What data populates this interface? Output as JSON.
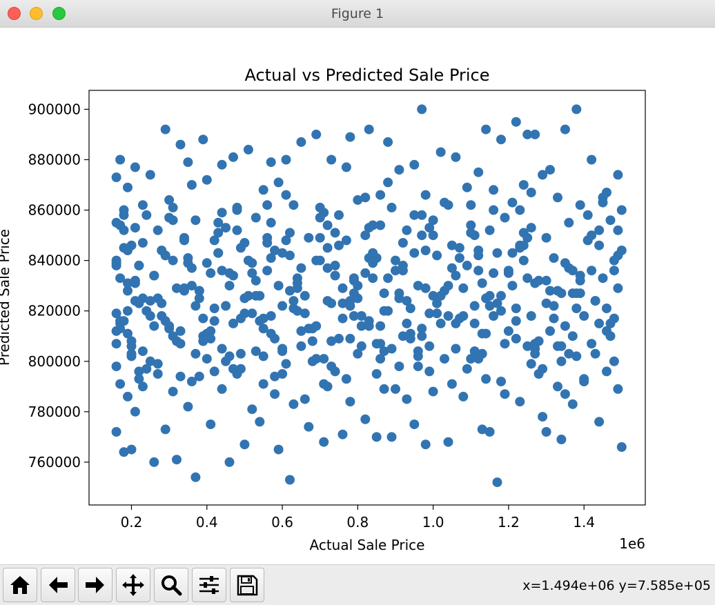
{
  "window": {
    "title": "Figure 1"
  },
  "toolbar": {
    "buttons": [
      {
        "name": "home-icon"
      },
      {
        "name": "back-arrow-icon"
      },
      {
        "name": "forward-arrow-icon"
      },
      {
        "name": "pan-move-icon"
      },
      {
        "name": "zoom-magnifier-icon"
      },
      {
        "name": "configure-subplots-icon"
      },
      {
        "name": "save-floppy-icon"
      }
    ],
    "coords": "x=1.494e+06 y=7.585e+05"
  },
  "chart_data": {
    "type": "scatter",
    "title": "Actual vs Predicted Sale Price",
    "xlabel": "Actual Sale Price",
    "ylabel": "Predicted Sale Price",
    "x_offset_label": "1e6",
    "xlim": [
      0.0875,
      1.5625
    ],
    "ylim": [
      743000,
      907500
    ],
    "xticks": [
      0.2,
      0.4,
      0.6,
      0.8,
      1.0,
      1.2,
      1.4
    ],
    "xtick_labels": [
      "0.2",
      "0.4",
      "0.6",
      "0.8",
      "1.0",
      "1.2",
      "1.4"
    ],
    "yticks": [
      760000,
      780000,
      800000,
      820000,
      840000,
      860000,
      880000,
      900000
    ],
    "ytick_labels": [
      "760000",
      "780000",
      "800000",
      "820000",
      "840000",
      "860000",
      "880000",
      "900000"
    ],
    "marker_color": "#3274b1",
    "grid": false,
    "points_x": [
      0.97,
      1.38,
      0.29,
      0.33,
      0.39,
      1.22,
      1.35,
      1.14,
      0.83,
      0.69,
      0.78,
      1.25,
      1.27,
      0.51,
      0.65,
      1.02,
      0.17,
      0.35,
      0.47,
      0.61,
      0.88,
      1.18,
      1.42,
      0.16,
      0.21,
      0.44,
      0.57,
      0.73,
      0.95,
      1.06,
      1.31,
      1.49,
      0.25,
      0.4,
      0.59,
      0.77,
      0.91,
      1.12,
      1.29,
      1.46,
      0.19,
      0.55,
      0.86,
      1.09,
      1.24,
      0.16,
      0.23,
      0.31,
      0.48,
      0.63,
      0.8,
      0.98,
      1.16,
      1.33,
      1.5,
      0.18,
      0.37,
      0.53,
      0.71,
      0.89,
      1.04,
      1.21,
      1.39,
      0.27,
      0.45,
      0.62,
      0.84,
      1.0,
      1.19,
      1.36,
      1.47,
      0.2,
      0.34,
      0.5,
      0.67,
      0.82,
      0.93,
      1.1,
      1.26,
      1.44,
      0.16,
      0.29,
      0.43,
      0.58,
      0.75,
      0.92,
      1.07,
      1.23,
      1.41,
      0.22,
      0.36,
      0.52,
      0.7,
      0.85,
      1.01,
      1.17,
      1.32,
      1.48,
      0.17,
      0.26,
      0.41,
      0.56,
      0.74,
      0.9,
      1.05,
      1.2,
      1.37,
      0.19,
      0.32,
      0.46,
      0.64,
      0.79,
      0.96,
      1.13,
      1.28,
      1.45,
      0.21,
      0.38,
      0.54,
      0.72,
      0.87,
      1.03,
      1.15,
      1.34,
      1.49,
      0.24,
      0.42,
      0.6,
      0.76,
      0.94,
      1.11,
      1.3,
      1.43,
      0.18,
      0.28,
      0.49,
      0.66,
      0.81,
      0.99,
      1.18,
      1.4,
      0.16,
      0.3,
      0.47,
      0.68,
      0.83,
      1.02,
      1.22,
      1.35,
      0.2,
      0.39,
      0.57,
      0.78,
      0.97,
      1.14,
      1.31,
      1.47,
      0.23,
      0.44,
      0.65,
      0.86,
      1.06,
      1.25,
      1.42,
      0.16,
      0.25,
      0.4,
      0.55,
      0.69,
      0.8,
      0.96,
      1.12,
      1.27,
      1.38,
      1.48,
      0.17,
      0.22,
      0.27,
      0.33,
      0.42,
      0.49,
      0.6,
      0.74,
      0.91,
      1.09,
      1.28,
      1.46,
      0.19,
      0.31,
      0.44,
      0.58,
      0.72,
      0.87,
      1.0,
      1.19,
      1.33,
      1.49,
      0.21,
      0.35,
      0.52,
      0.63,
      0.78,
      0.93,
      1.08,
      1.23,
      1.37,
      0.16,
      0.29,
      0.41,
      0.54,
      0.67,
      0.82,
      0.95,
      1.13,
      1.29,
      1.44,
      0.18,
      0.26,
      0.37,
      0.5,
      0.62,
      0.76,
      0.89,
      1.04,
      1.17,
      1.34,
      1.5,
      0.2,
      0.32,
      0.46,
      0.59,
      0.71,
      0.85,
      0.98,
      1.15,
      1.3,
      1.45,
      0.24,
      0.36,
      0.48,
      0.61,
      0.75,
      0.88,
      1.03,
      1.16,
      1.26,
      1.41,
      0.17,
      0.28,
      0.43,
      0.56,
      0.7,
      0.84,
      0.99,
      1.11,
      1.24,
      1.39,
      0.22,
      0.34,
      0.51,
      0.64,
      0.79,
      0.92,
      1.07,
      1.21,
      1.36,
      1.47,
      0.19,
      0.3,
      0.45,
      0.57,
      0.73,
      0.86,
      1.01,
      1.14,
      1.32,
      1.43,
      0.16,
      0.27,
      0.39,
      0.53,
      0.68,
      0.81,
      0.94,
      1.1,
      1.27,
      1.4,
      0.23,
      0.38,
      0.55,
      0.66,
      0.77,
      0.9,
      1.05,
      1.18,
      1.35,
      1.49,
      0.18,
      0.31,
      0.42,
      0.6,
      0.72,
      0.83,
      0.97,
      1.12,
      1.25,
      1.42,
      0.21,
      0.35,
      0.47,
      0.62,
      0.74,
      0.88,
      1.02,
      1.16,
      1.3,
      1.46,
      0.17,
      0.25,
      0.4,
      0.52,
      0.65,
      0.8,
      0.93,
      1.08,
      1.22,
      1.37,
      0.2,
      0.33,
      0.49,
      0.58,
      0.71,
      0.85,
      0.96,
      1.13,
      1.28,
      1.44,
      0.16,
      0.29,
      0.44,
      0.56,
      0.69,
      0.82,
      0.95,
      1.09,
      1.23,
      1.38,
      0.22,
      0.36,
      0.5,
      0.63,
      0.76,
      0.87,
      1.0,
      1.15,
      1.31,
      1.48,
      0.19,
      0.26,
      0.41,
      0.54,
      0.67,
      0.79,
      0.92,
      1.06,
      1.2,
      1.34,
      0.24,
      0.37,
      0.48,
      0.61,
      0.73,
      0.86,
      0.99,
      1.11,
      1.26,
      1.41,
      0.18,
      0.3,
      0.43,
      0.57,
      0.7,
      0.83,
      0.97,
      1.1,
      1.24,
      1.39,
      0.21,
      0.34,
      0.46,
      0.59,
      0.72,
      0.84,
      0.98,
      1.12,
      1.27,
      1.43,
      0.16,
      0.28,
      0.39,
      0.51,
      0.64,
      0.78,
      0.91,
      1.04,
      1.17,
      1.33,
      0.2,
      0.32,
      0.45,
      0.6,
      0.75,
      0.89,
      1.03,
      1.19,
      1.36,
      1.5,
      0.23,
      0.35,
      0.49,
      0.62,
      0.77,
      0.9,
      1.05,
      1.21,
      1.35,
      1.46,
      0.17,
      0.31,
      0.42,
      0.55,
      0.68,
      0.81,
      0.94,
      1.07,
      1.22,
      1.37,
      0.19,
      0.27,
      0.38,
      0.53,
      0.66,
      0.8,
      0.93,
      1.08,
      1.25,
      1.4,
      0.22,
      0.36,
      0.47,
      0.58,
      0.71,
      0.85,
      0.96,
      1.14,
      1.29,
      1.45,
      0.18,
      0.3,
      0.44,
      0.56,
      0.7,
      0.82,
      0.95,
      1.1,
      1.23,
      1.38,
      0.25,
      0.37,
      0.5,
      0.63,
      0.76,
      0.88,
      1.01,
      1.16,
      1.32,
      1.48,
      0.16,
      0.26,
      0.4,
      0.52,
      0.65,
      0.79,
      0.92,
      1.06,
      1.2,
      1.34,
      0.2,
      0.33,
      0.46,
      0.6,
      0.73,
      0.87,
      0.99,
      1.13,
      1.27,
      1.42,
      0.21,
      0.34,
      0.48,
      0.61,
      0.74,
      0.86,
      1.0,
      1.15,
      1.3,
      1.44,
      0.17,
      0.29,
      0.41,
      0.55,
      0.69,
      0.83,
      0.97,
      1.11,
      1.26,
      1.39,
      0.23,
      0.38,
      0.53,
      0.64,
      0.78,
      0.91,
      1.04,
      1.18,
      1.33,
      1.49,
      0.19,
      0.31,
      0.43,
      0.57,
      0.72,
      0.84,
      0.98,
      1.12,
      1.24,
      1.41
    ],
    "points_y": [
      900000,
      900000,
      892000,
      886000,
      888000,
      895000,
      892000,
      892000,
      892000,
      890000,
      889000,
      890000,
      890000,
      884000,
      887000,
      883000,
      880000,
      879000,
      881000,
      880000,
      887000,
      888000,
      880000,
      873000,
      877000,
      878000,
      879000,
      880000,
      878000,
      881000,
      876000,
      874000,
      874000,
      872000,
      871000,
      877000,
      876000,
      875000,
      874000,
      867000,
      869000,
      868000,
      866000,
      869000,
      870000,
      855000,
      862000,
      861000,
      860000,
      862000,
      864000,
      866000,
      868000,
      865000,
      860000,
      858000,
      856000,
      857000,
      859000,
      861000,
      862000,
      863000,
      862000,
      852000,
      853000,
      851000,
      854000,
      856000,
      857000,
      855000,
      856000,
      846000,
      848000,
      847000,
      849000,
      850000,
      852000,
      851000,
      853000,
      852000,
      840000,
      842000,
      843000,
      844000,
      846000,
      847000,
      845000,
      846000,
      848000,
      838000,
      837000,
      839000,
      840000,
      841000,
      842000,
      843000,
      841000,
      840000,
      833000,
      834000,
      835000,
      836000,
      834000,
      836000,
      837000,
      835000,
      836000,
      828000,
      829000,
      830000,
      831000,
      832000,
      830000,
      831000,
      832000,
      833000,
      824000,
      825000,
      826000,
      824000,
      827000,
      828000,
      826000,
      827000,
      829000,
      820000,
      821000,
      822000,
      823000,
      821000,
      822000,
      823000,
      824000,
      816000,
      818000,
      817000,
      819000,
      818000,
      819000,
      820000,
      818000,
      812000,
      814000,
      815000,
      813000,
      814000,
      815000,
      816000,
      814000,
      808000,
      810000,
      811000,
      809000,
      810000,
      811000,
      812000,
      810000,
      804000,
      805000,
      806000,
      807000,
      805000,
      806000,
      807000,
      798000,
      800000,
      801000,
      802000,
      801000,
      803000,
      802000,
      801000,
      803000,
      802000,
      800000,
      791000,
      793000,
      795000,
      794000,
      796000,
      797000,
      795000,
      796000,
      798000,
      797000,
      795000,
      796000,
      786000,
      788000,
      789000,
      787000,
      790000,
      789000,
      788000,
      787000,
      790000,
      789000,
      780000,
      782000,
      781000,
      783000,
      784000,
      785000,
      786000,
      784000,
      783000,
      772000,
      773000,
      775000,
      776000,
      774000,
      777000,
      775000,
      773000,
      778000,
      776000,
      764000,
      760000,
      754000,
      767000,
      753000,
      771000,
      770000,
      768000,
      752000,
      769000,
      766000,
      765000,
      761000,
      760000,
      765000,
      768000,
      770000,
      767000,
      772000,
      772000,
      865000,
      858000,
      870000,
      861000,
      866000,
      858000,
      871000,
      863000,
      860000,
      867000,
      848000,
      854000,
      844000,
      855000,
      849000,
      857000,
      843000,
      853000,
      850000,
      846000,
      832000,
      838000,
      829000,
      840000,
      833000,
      827000,
      836000,
      841000,
      830000,
      837000,
      815000,
      820000,
      813000,
      822000,
      818000,
      823000,
      814000,
      819000,
      825000,
      817000,
      803000,
      807000,
      799000,
      808000,
      804000,
      800000,
      806000,
      809000,
      801000,
      805000,
      792000,
      790000,
      794000,
      791000,
      785000,
      793000,
      789000,
      791000,
      792000,
      787000,
      852000,
      845000,
      856000,
      848000,
      843000,
      854000,
      841000,
      850000,
      844000,
      849000,
      836000,
      831000,
      839000,
      834000,
      828000,
      838000,
      833000,
      826000,
      835000,
      832000,
      821000,
      816000,
      824000,
      811000,
      819000,
      812000,
      825000,
      815000,
      818000,
      821000,
      810000,
      806000,
      812000,
      803000,
      809000,
      801000,
      807000,
      804000,
      811000,
      808000,
      846000,
      839000,
      842000,
      836000,
      847000,
      840000,
      835000,
      843000,
      838000,
      845000,
      827000,
      823000,
      830000,
      825000,
      821000,
      829000,
      820000,
      826000,
      822000,
      828000,
      817000,
      811000,
      814000,
      809000,
      816000,
      813000,
      818000,
      810000,
      815000,
      812000,
      800000,
      797000,
      803000,
      795000,
      799000,
      798000,
      801000,
      796000,
      804000,
      799000,
      858000,
      852000,
      857000,
      851000,
      855000,
      849000,
      853000,
      858000,
      854000,
      851000,
      834000,
      832000,
      828000,
      835000,
      830000,
      837000,
      833000,
      829000,
      836000,
      831000,
      824000,
      819000,
      823000,
      817000,
      826000,
      820000,
      822000,
      825000,
      818000,
      823000,
      806000,
      802000,
      808000,
      800000,
      804000,
      809000,
      805000,
      801000,
      807000,
      803000,
      844000,
      847000,
      841000,
      845000,
      842000,
      848000,
      840000,
      846000,
      843000,
      839000,
      812000,
      815000,
      810000,
      816000,
      813000,
      808000,
      814000,
      811000,
      817000,
      809000,
      827000,
      831000,
      825000,
      828000,
      832000,
      826000,
      830000,
      824000,
      829000,
      833000,
      793000,
      796000,
      792000,
      797000,
      794000,
      791000,
      795000,
      798000,
      793000,
      797000,
      863000,
      860000,
      864000,
      859000,
      862000,
      861000,
      865000,
      858000,
      862000,
      860000,
      821000,
      818000,
      822000,
      819000,
      824000,
      817000,
      820000,
      823000,
      818000,
      822000,
      836000,
      838000,
      834000,
      839000,
      835000,
      837000,
      833000,
      838000,
      834000,
      836000,
      806000,
      803000,
      807000,
      802000,
      805000,
      808000,
      804000,
      806000,
      803000,
      807000,
      850000,
      853000,
      849000,
      852000,
      848000,
      851000,
      854000,
      850000,
      852000,
      849000,
      815000,
      813000,
      816000,
      812000,
      817000,
      814000,
      816000,
      813000,
      815000,
      818000,
      827000,
      825000,
      828000,
      826000,
      829000,
      824000,
      827000,
      830000,
      826000,
      828000,
      842000,
      844000,
      840000,
      843000,
      841000,
      845000,
      839000,
      844000,
      842000,
      840000
    ]
  }
}
